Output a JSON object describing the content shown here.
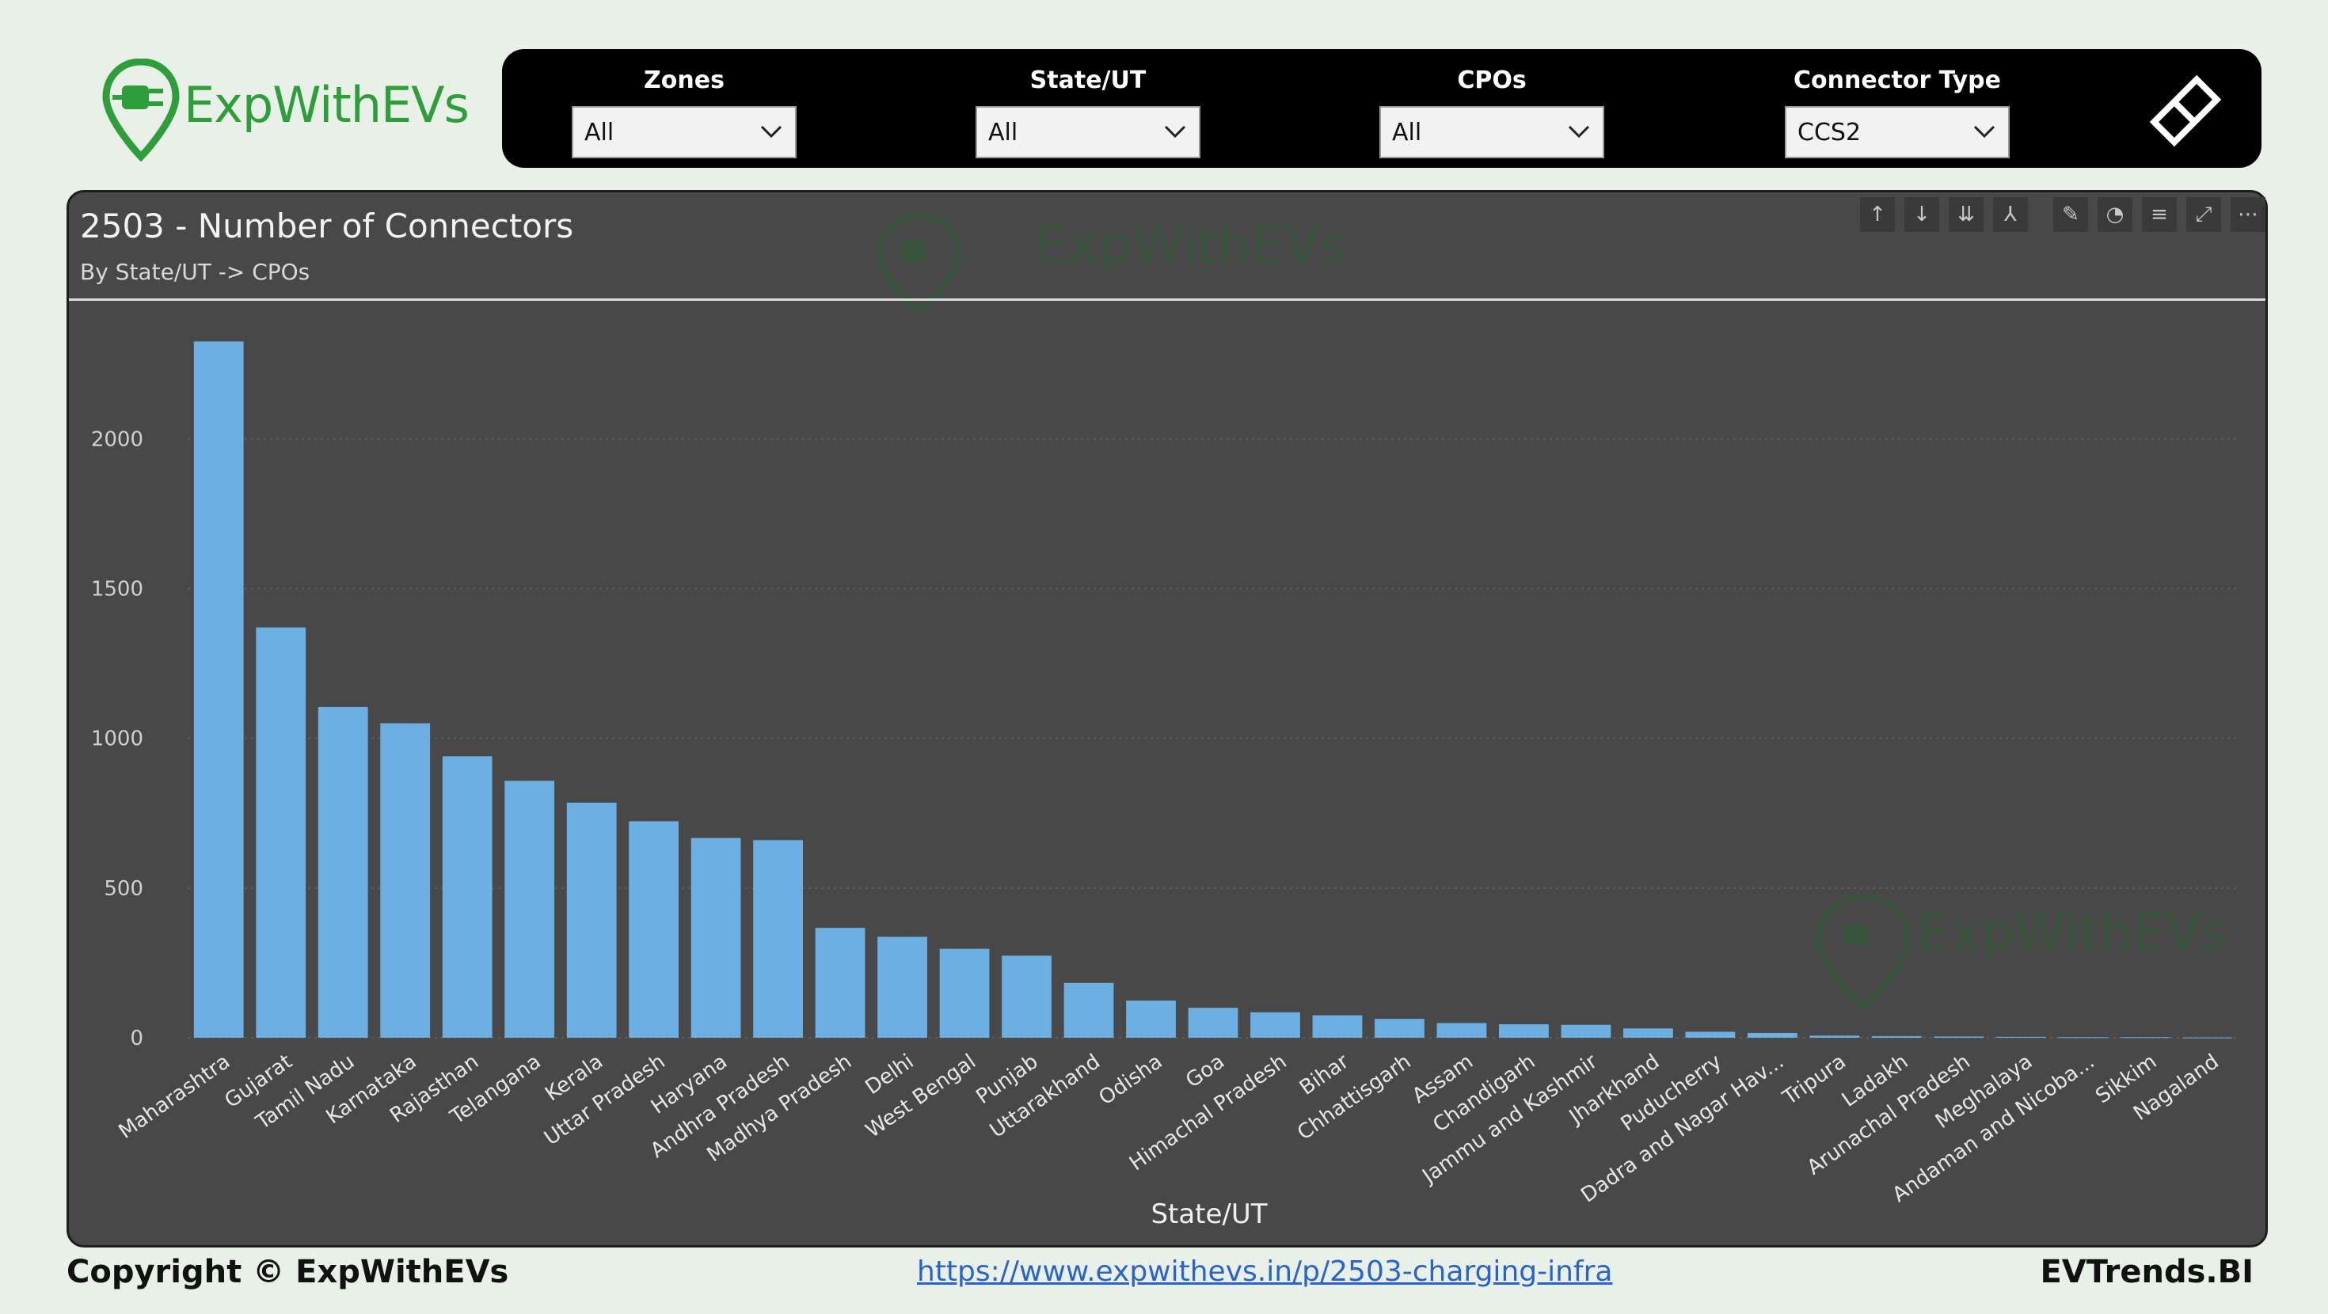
{
  "brand": {
    "name": "ExpWithEVs",
    "color": "#2e9e3a",
    "logo_icon": "map-pin-plug-icon"
  },
  "filters": [
    {
      "label": "Zones",
      "value": "All"
    },
    {
      "label": "State/UT",
      "value": "All"
    },
    {
      "label": "CPOs",
      "value": "All"
    },
    {
      "label": "Connector Type",
      "value": "CCS2"
    }
  ],
  "clear_filters_icon": "eraser-icon",
  "visual": {
    "title": "2503 - Number of Connectors",
    "subtitle": "By State/UT -> CPOs",
    "toolbar_icons": [
      "arrow-up-icon",
      "arrow-down-icon",
      "double-arrow-down-icon",
      "expand-hierarchy-icon",
      "pin-icon",
      "bell-icon",
      "filter-icon",
      "focus-mode-icon",
      "more-options-icon"
    ]
  },
  "chart_data": {
    "type": "bar",
    "title": "2503 - Number of Connectors",
    "subtitle": "By State/UT -> CPOs",
    "xlabel": "State/UT",
    "ylabel": "",
    "ylim": [
      0,
      2400
    ],
    "yticks": [
      "0",
      "500",
      "1000",
      "1500",
      "2000"
    ],
    "bar_color": "#6cafe2",
    "grid": true,
    "categories": [
      "Maharashtra",
      "Gujarat",
      "Tamil Nadu",
      "Karnataka",
      "Rajasthan",
      "Telangana",
      "Kerala",
      "Uttar Pradesh",
      "Haryana",
      "Andhra Pradesh",
      "Madhya Pradesh",
      "Delhi",
      "West Bengal",
      "Punjab",
      "Uttarakhand",
      "Odisha",
      "Goa",
      "Himachal Pradesh",
      "Bihar",
      "Chhattisgarh",
      "Assam",
      "Chandigarh",
      "Jammu and Kashmir",
      "Jharkhand",
      "Puducherry",
      "Dadra and Nagar Hav...",
      "Tripura",
      "Ladakh",
      "Arunachal Pradesh",
      "Meghalaya",
      "Andaman and Nicoba...",
      "Sikkim",
      "Nagaland"
    ],
    "values": [
      2325,
      1370,
      1105,
      1050,
      940,
      858,
      785,
      723,
      667,
      660,
      367,
      337,
      297,
      274,
      183,
      124,
      100,
      85,
      75,
      63,
      49,
      45,
      43,
      31,
      20,
      16,
      7,
      5,
      4,
      3,
      2,
      2,
      1
    ]
  },
  "footer": {
    "copyright": "Copyright © ExpWithEVs",
    "link": "https://www.expwithevs.in/p/2503-charging-infra",
    "brand_right": "EVTrends.BI"
  }
}
